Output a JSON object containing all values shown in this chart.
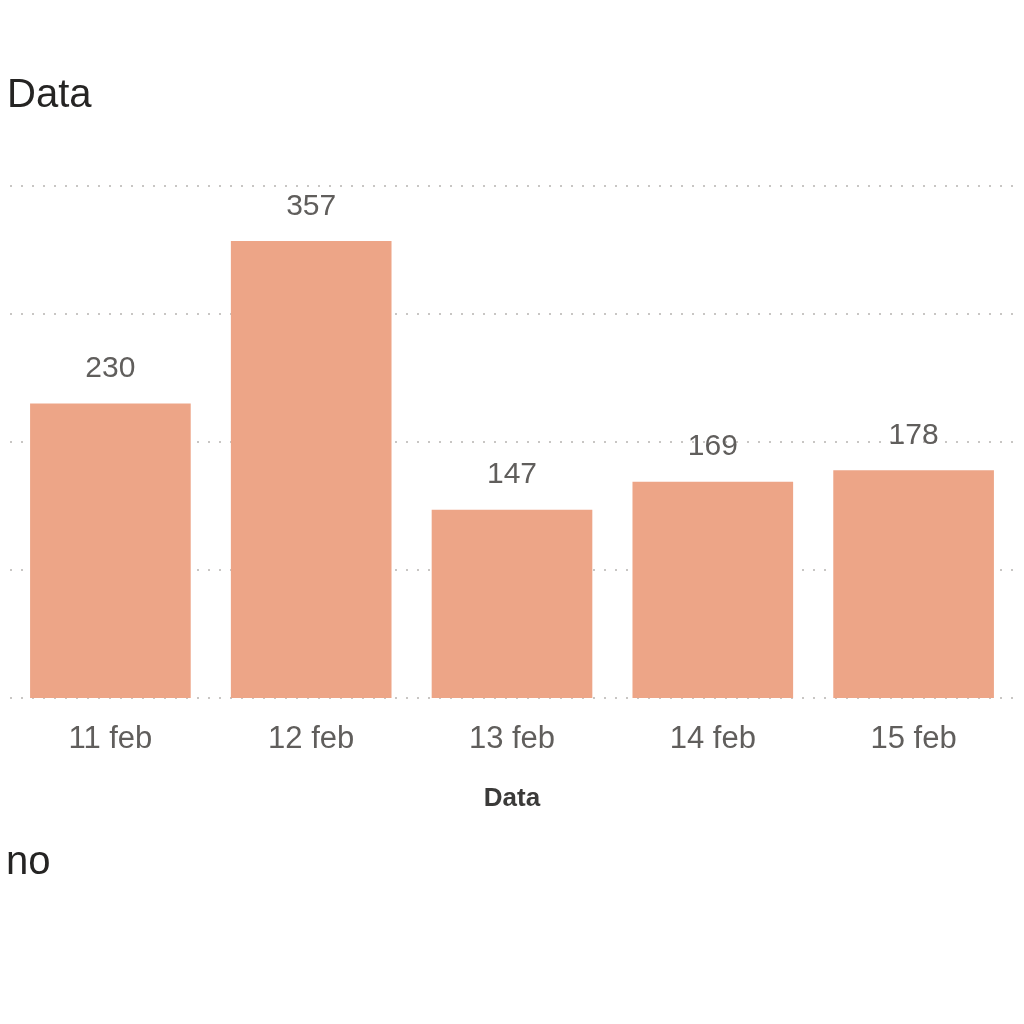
{
  "chart_data": {
    "type": "bar",
    "title": "Data",
    "xlabel": "Data",
    "categories": [
      "11 feb",
      "12 feb",
      "13 feb",
      "14 feb",
      "15 feb"
    ],
    "values": [
      230,
      357,
      147,
      169,
      178
    ],
    "color": "#eda587",
    "data_labels": true,
    "ylim": [
      0,
      400
    ],
    "yticks": [
      0,
      100,
      200,
      300,
      400
    ],
    "grid": "y",
    "tick_labels": "x",
    "annotations": [
      "no"
    ]
  }
}
